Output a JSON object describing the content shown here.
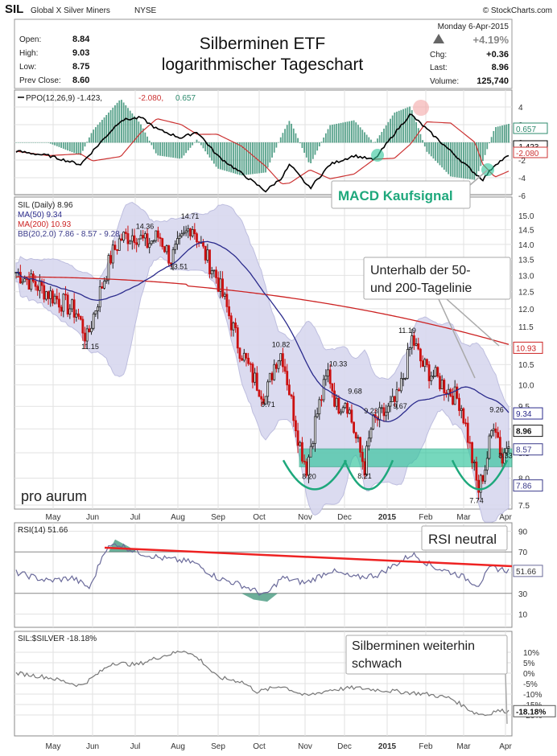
{
  "header": {
    "symbol": "SIL",
    "name": "Global X Silver Miners",
    "exchange": "NYSE",
    "credit": "© StockCharts.com",
    "date": "Monday  6-Apr-2015",
    "open_label": "Open:",
    "open": "8.84",
    "high_label": "High:",
    "high": "9.03",
    "low_label": "Low:",
    "low": "8.75",
    "prev_label": "Prev Close:",
    "prev": "8.60",
    "pct": "+4.19%",
    "chg_label": "Chg:",
    "chg": "+0.36",
    "last_label": "Last:",
    "last": "8.96",
    "vol_label": "Volume:",
    "vol": "125,740",
    "title_line1": "Silberminen ETF",
    "title_line2": "logarithmischer Tageschart"
  },
  "ppo": {
    "legend_name": "PPO(12,26,9) -1.423,",
    "legend_signal": "-2.080,",
    "legend_hist": "0.657",
    "ticks": [
      "4",
      "2",
      "0",
      "-2",
      "-4",
      "-6"
    ],
    "label_hist": "0.657",
    "label_ppo": "-1.423",
    "label_sig": "-2.080",
    "annotation": "MACD Kaufsignal",
    "colors": {
      "ppo": "#000000",
      "signal": "#cc3333",
      "hist": "#2e8b6e"
    }
  },
  "price": {
    "legend": [
      "SIL (Daily) 8.96",
      "MA(50) 9.34",
      "MA(200) 10.93",
      "BB(20,2.0) 7.86 - 8.57 - 9.28"
    ],
    "ticks": [
      "15.0",
      "14.5",
      "14.0",
      "13.5",
      "13.0",
      "12.5",
      "12.0",
      "11.5",
      "11.0",
      "10.5",
      "10.0",
      "9.5",
      "9.0",
      "8.5",
      "8.0",
      "7.5"
    ],
    "right_labels": [
      "10.93",
      "9.34",
      "8.96",
      "8.57",
      "7.86"
    ],
    "peak_labels": [
      "14.36",
      "14.71",
      "13.51",
      "11.15",
      "10.82",
      "9.71",
      "10.33",
      "9.68",
      "9.23",
      "9.67",
      "11.19",
      "9.26",
      "8.20",
      "8.21",
      "7.74",
      "8.33"
    ],
    "annotation": [
      "Unterhalb der 50-",
      "und 200-Tagelinie"
    ],
    "logo": "pro aurum",
    "colors": {
      "ma50": "#2b2b8c",
      "ma200": "#cc2222",
      "bb": "#b8b8dc",
      "up": "#222222",
      "down": "#cc1111",
      "zone": "#2ec49a"
    }
  },
  "rsi": {
    "legend": "RSI(14) 51.66",
    "ticks": [
      "90",
      "70",
      "50",
      "30",
      "10"
    ],
    "value_label": "51.66",
    "annotation": "RSI neutral",
    "colors": {
      "line": "#6a6a9a",
      "trend": "#ee2222",
      "fill": "#2e8b6e"
    }
  },
  "ratio": {
    "legend": "SIL:$SILVER -18.18%",
    "ticks": [
      "10%",
      "5%",
      "0%",
      "-5%",
      "-10%",
      "-15%",
      "-20%"
    ],
    "value_label": "-18.18%",
    "annotation": [
      "Silberminen weiterhin",
      "schwach"
    ]
  },
  "months": [
    "May",
    "Jun",
    "Jul",
    "Aug",
    "Sep",
    "Oct",
    "Nov",
    "Dec",
    "2015",
    "Feb",
    "Mar",
    "Apr"
  ],
  "chart_data": {
    "type": "line",
    "title": "Silberminen ETF logarithmischer Tageschart",
    "x": [
      "May",
      "Jun",
      "Jul",
      "Aug",
      "Sep",
      "Oct",
      "Nov",
      "Dec",
      "2015",
      "Feb",
      "Mar",
      "Apr"
    ],
    "series": [
      {
        "name": "SIL (Daily)",
        "values": [
          13.0,
          12.2,
          14.4,
          14.3,
          13.3,
          11.0,
          8.6,
          8.8,
          9.8,
          10.4,
          8.3,
          8.96
        ]
      },
      {
        "name": "MA(50)",
        "values": [
          12.6,
          12.3,
          12.7,
          13.5,
          13.6,
          12.2,
          10.3,
          9.3,
          9.4,
          9.8,
          9.7,
          9.34
        ]
      },
      {
        "name": "MA(200)",
        "values": [
          12.9,
          12.9,
          13.0,
          13.1,
          13.0,
          12.9,
          12.7,
          12.3,
          11.8,
          11.4,
          11.2,
          10.93
        ]
      },
      {
        "name": "PPO",
        "values": [
          0,
          -1,
          3,
          1,
          -1,
          -4,
          -5,
          -3,
          3,
          2,
          -4,
          -1.423
        ]
      },
      {
        "name": "RSI(14)",
        "values": [
          45,
          42,
          72,
          60,
          48,
          35,
          40,
          45,
          62,
          58,
          40,
          51.66
        ]
      },
      {
        "name": "SIL:$SILVER",
        "values": [
          0,
          -2,
          5,
          6,
          -3,
          -8,
          -7,
          -6,
          -8,
          -10,
          -18,
          -18.18
        ]
      }
    ],
    "ylim": [
      7.5,
      15.0
    ],
    "grid": true,
    "legend": "top-left"
  }
}
